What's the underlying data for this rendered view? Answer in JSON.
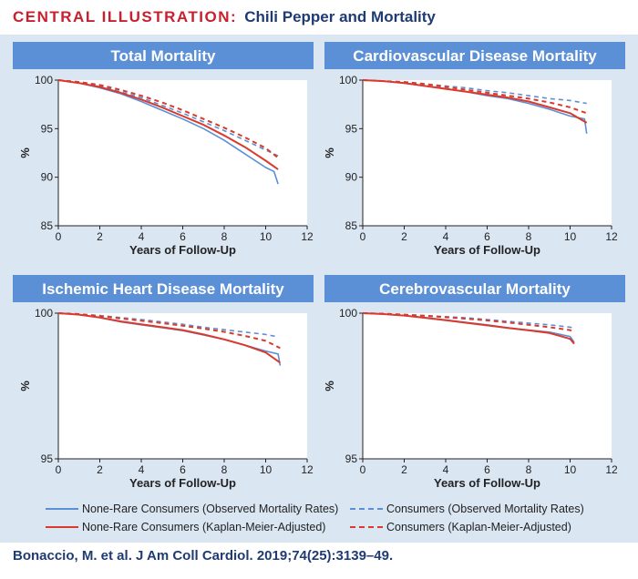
{
  "header": {
    "banner": "CENTRAL ILLUSTRATION:",
    "subtitle": "Chili Pepper and Mortality"
  },
  "colors": {
    "blue": "#5b8fd6",
    "red": "#d83a2e",
    "panel_title_bg": "#5b8fd6",
    "board_bg": "#dbe6f3"
  },
  "series_styles": [
    {
      "name": "None-Rare Consumers (Observed Mortality Rates)",
      "color": "#5b8fd6",
      "dashed": false
    },
    {
      "name": "Consumers (Observed Mortality Rates)",
      "color": "#5b8fd6",
      "dashed": true
    },
    {
      "name": "None-Rare Consumers (Kaplan-Meier-Adjusted)",
      "color": "#d83a2e",
      "dashed": false
    },
    {
      "name": "Consumers (Kaplan-Meier-Adjusted)",
      "color": "#d83a2e",
      "dashed": true
    }
  ],
  "legend": {
    "items": [
      "None-Rare Consumers (Observed Mortality Rates)",
      "Consumers (Observed Mortality Rates)",
      "None-Rare Consumers (Kaplan-Meier-Adjusted)",
      "Consumers (Kaplan-Meier-Adjusted)"
    ]
  },
  "citation": "Bonaccio, M. et al. J Am Coll Cardiol. 2019;74(25):3139–49.",
  "chart_data": [
    {
      "type": "line",
      "title": "Total Mortality",
      "xlabel": "Years of Follow-Up",
      "ylabel": "%",
      "xlim": [
        0,
        12
      ],
      "ylim": [
        85,
        100
      ],
      "xticks": [
        0,
        2,
        4,
        6,
        8,
        10,
        12
      ],
      "yticks": [
        85,
        90,
        95,
        100
      ],
      "series": [
        {
          "name": "None-Rare Consumers (Observed Mortality Rates)",
          "x": [
            0,
            1,
            2,
            3,
            4,
            5,
            6,
            7,
            8,
            9,
            10,
            10.4,
            10.6
          ],
          "y": [
            100,
            99.7,
            99.2,
            98.6,
            97.8,
            96.9,
            96.0,
            95.0,
            93.8,
            92.4,
            91.0,
            90.6,
            89.3
          ]
        },
        {
          "name": "Consumers (Observed Mortality Rates)",
          "x": [
            0,
            1,
            2,
            3,
            4,
            5,
            6,
            7,
            8,
            9,
            10,
            10.6
          ],
          "y": [
            100,
            99.8,
            99.4,
            98.8,
            98.2,
            97.4,
            96.6,
            95.7,
            94.8,
            93.8,
            92.8,
            92.2
          ]
        },
        {
          "name": "None-Rare Consumers (Kaplan-Meier-Adjusted)",
          "x": [
            0,
            1,
            2,
            3,
            4,
            5,
            6,
            7,
            8,
            9,
            10,
            10.6
          ],
          "y": [
            100,
            99.7,
            99.3,
            98.7,
            98.0,
            97.2,
            96.3,
            95.4,
            94.3,
            93.1,
            91.7,
            90.8
          ]
        },
        {
          "name": "Consumers (Kaplan-Meier-Adjusted)",
          "x": [
            0,
            1,
            2,
            3,
            4,
            5,
            6,
            7,
            8,
            9,
            10,
            10.6
          ],
          "y": [
            100,
            99.8,
            99.5,
            99.0,
            98.4,
            97.7,
            96.9,
            96.0,
            95.1,
            94.1,
            93.0,
            92.0
          ]
        }
      ]
    },
    {
      "type": "line",
      "title": "Cardiovascular Disease Mortality",
      "xlabel": "Years of Follow-Up",
      "ylabel": "%",
      "xlim": [
        0,
        12
      ],
      "ylim": [
        85,
        100
      ],
      "xticks": [
        0,
        2,
        4,
        6,
        8,
        10,
        12
      ],
      "yticks": [
        85,
        90,
        95,
        100
      ],
      "series": [
        {
          "name": "None-Rare Consumers (Observed Mortality Rates)",
          "x": [
            0,
            1,
            2,
            3,
            4,
            5,
            6,
            7,
            8,
            9,
            10,
            10.7,
            10.8
          ],
          "y": [
            100,
            99.9,
            99.7,
            99.4,
            99.1,
            98.8,
            98.4,
            98.1,
            97.6,
            97.0,
            96.3,
            96.0,
            94.5
          ]
        },
        {
          "name": "Consumers (Observed Mortality Rates)",
          "x": [
            0,
            1,
            2,
            3,
            4,
            5,
            6,
            7,
            8,
            9,
            10,
            10.8
          ],
          "y": [
            100,
            99.9,
            99.8,
            99.6,
            99.4,
            99.2,
            98.9,
            98.7,
            98.4,
            98.1,
            97.9,
            97.6
          ]
        },
        {
          "name": "None-Rare Consumers (Kaplan-Meier-Adjusted)",
          "x": [
            0,
            1,
            2,
            3,
            4,
            5,
            6,
            7,
            8,
            9,
            10,
            10.8
          ],
          "y": [
            100,
            99.9,
            99.7,
            99.4,
            99.1,
            98.8,
            98.5,
            98.2,
            97.8,
            97.2,
            96.6,
            95.6
          ]
        },
        {
          "name": "Consumers (Kaplan-Meier-Adjusted)",
          "x": [
            0,
            1,
            2,
            3,
            4,
            5,
            6,
            7,
            8,
            9,
            10,
            10.8
          ],
          "y": [
            100,
            99.9,
            99.8,
            99.6,
            99.3,
            99.0,
            98.7,
            98.4,
            98.1,
            97.7,
            97.2,
            96.6
          ]
        }
      ]
    },
    {
      "type": "line",
      "title": "Ischemic Heart Disease Mortality",
      "xlabel": "Years of Follow-Up",
      "ylabel": "%",
      "xlim": [
        0,
        12
      ],
      "ylim": [
        95,
        100
      ],
      "xticks": [
        0,
        2,
        4,
        6,
        8,
        10,
        12
      ],
      "yticks": [
        95,
        100
      ],
      "series": [
        {
          "name": "None-Rare Consumers (Observed Mortality Rates)",
          "x": [
            0,
            1,
            2,
            3,
            4,
            5,
            6,
            7,
            8,
            9,
            10,
            10.6,
            10.7
          ],
          "y": [
            100,
            99.95,
            99.85,
            99.7,
            99.6,
            99.5,
            99.4,
            99.25,
            99.1,
            98.9,
            98.7,
            98.6,
            98.2
          ]
        },
        {
          "name": "Consumers (Observed Mortality Rates)",
          "x": [
            0,
            1,
            2,
            3,
            4,
            5,
            6,
            7,
            8,
            9,
            10,
            10.5
          ],
          "y": [
            100,
            99.97,
            99.92,
            99.85,
            99.78,
            99.7,
            99.62,
            99.52,
            99.43,
            99.35,
            99.27,
            99.2
          ]
        },
        {
          "name": "None-Rare Consumers (Kaplan-Meier-Adjusted)",
          "x": [
            0,
            1,
            2,
            3,
            4,
            5,
            6,
            7,
            8,
            9,
            10,
            10.7
          ],
          "y": [
            100,
            99.95,
            99.85,
            99.72,
            99.62,
            99.52,
            99.42,
            99.27,
            99.1,
            98.9,
            98.65,
            98.3
          ]
        },
        {
          "name": "Consumers (Kaplan-Meier-Adjusted)",
          "x": [
            0,
            1,
            2,
            3,
            4,
            5,
            6,
            7,
            8,
            9,
            10,
            10.7
          ],
          "y": [
            100,
            99.97,
            99.9,
            99.82,
            99.74,
            99.66,
            99.57,
            99.47,
            99.36,
            99.22,
            99.05,
            98.8
          ]
        }
      ]
    },
    {
      "type": "line",
      "title": "Cerebrovascular Mortality",
      "xlabel": "Years of Follow-Up",
      "ylabel": "%",
      "xlim": [
        0,
        12
      ],
      "ylim": [
        95,
        100
      ],
      "xticks": [
        0,
        2,
        4,
        6,
        8,
        10,
        12
      ],
      "yticks": [
        95,
        100
      ],
      "series": [
        {
          "name": "None-Rare Consumers (Observed Mortality Rates)",
          "x": [
            0,
            1,
            2,
            3,
            4,
            5,
            6,
            7,
            8,
            9,
            10,
            10.2
          ],
          "y": [
            100,
            99.97,
            99.92,
            99.85,
            99.77,
            99.68,
            99.6,
            99.5,
            99.42,
            99.35,
            99.2,
            99.0
          ]
        },
        {
          "name": "Consumers (Observed Mortality Rates)",
          "x": [
            0,
            1,
            2,
            3,
            4,
            5,
            6,
            7,
            8,
            9,
            10,
            10.2
          ],
          "y": [
            100,
            99.98,
            99.95,
            99.92,
            99.88,
            99.84,
            99.78,
            99.72,
            99.66,
            99.6,
            99.52,
            99.48
          ]
        },
        {
          "name": "None-Rare Consumers (Kaplan-Meier-Adjusted)",
          "x": [
            0,
            1,
            2,
            3,
            4,
            5,
            6,
            7,
            8,
            9,
            10,
            10.2
          ],
          "y": [
            100,
            99.97,
            99.92,
            99.84,
            99.76,
            99.67,
            99.58,
            99.49,
            99.41,
            99.32,
            99.12,
            98.95
          ]
        },
        {
          "name": "Consumers (Kaplan-Meier-Adjusted)",
          "x": [
            0,
            1,
            2,
            3,
            4,
            5,
            6,
            7,
            8,
            9,
            10,
            10.2
          ],
          "y": [
            100,
            99.98,
            99.95,
            99.91,
            99.86,
            99.81,
            99.75,
            99.68,
            99.6,
            99.52,
            99.42,
            99.35
          ]
        }
      ]
    }
  ]
}
